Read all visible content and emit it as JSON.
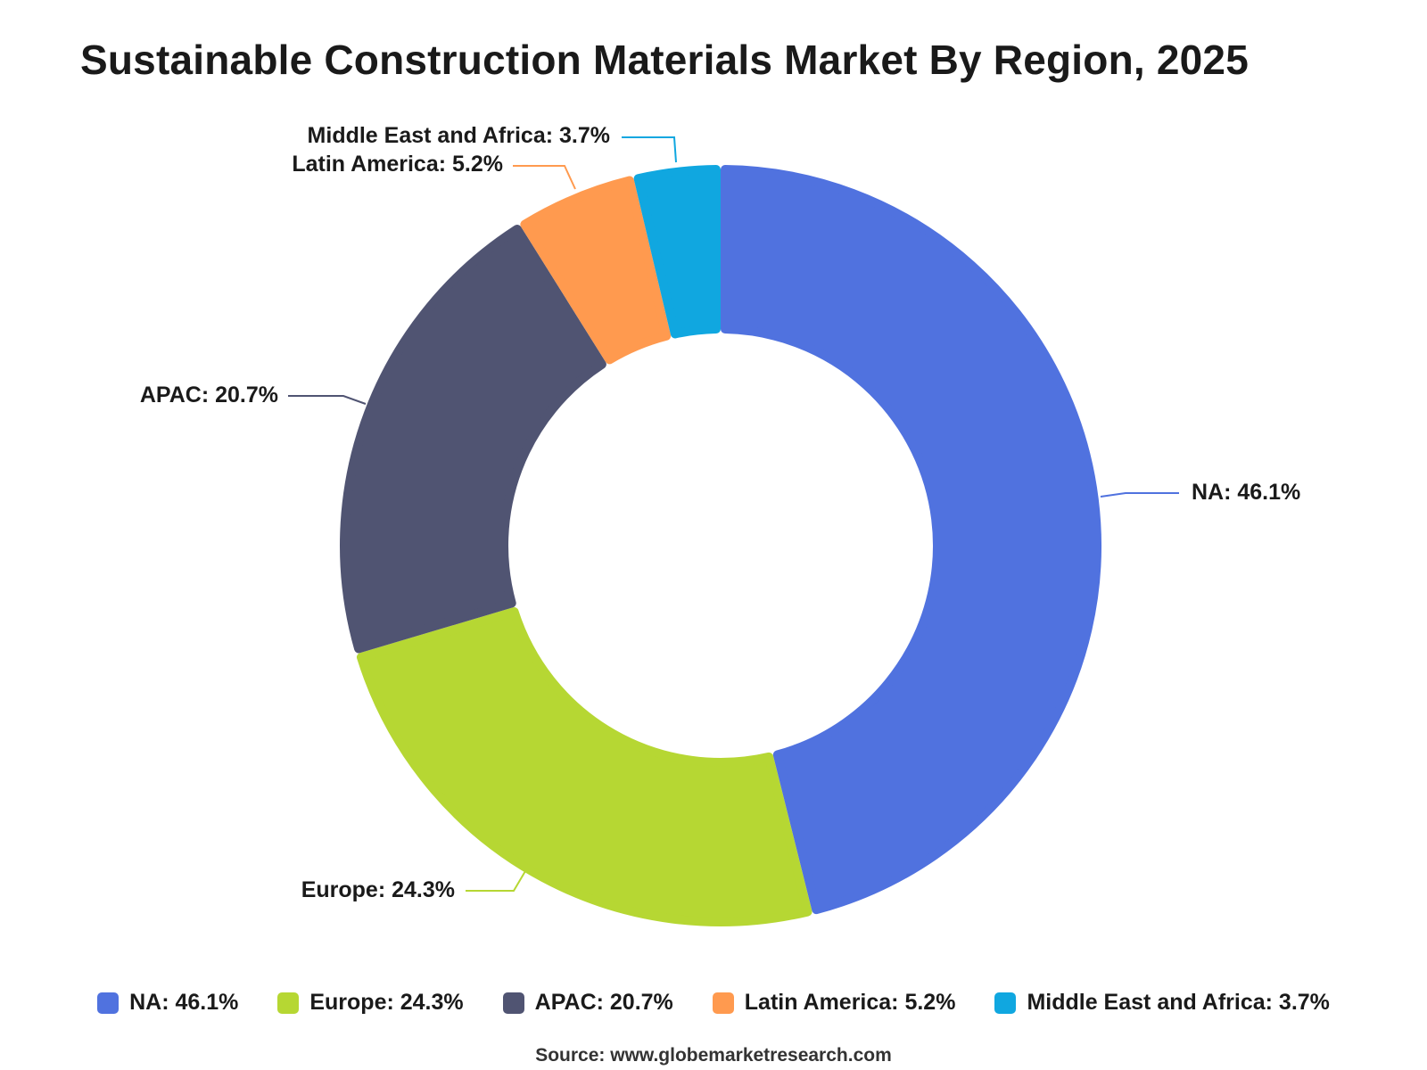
{
  "chart_data": {
    "type": "pie",
    "donut": true,
    "title": "Sustainable Construction Materials Market By Region, 2025",
    "source": "Source: www.globemarketresearch.com",
    "unit": "%",
    "legend_position": "bottom",
    "slices": [
      {
        "label": "NA",
        "value": 46.1,
        "color": "#5072df",
        "text": "NA: 46.1%"
      },
      {
        "label": "Europe",
        "value": 24.3,
        "color": "#b6d733",
        "text": "Europe: 24.3%"
      },
      {
        "label": "APAC",
        "value": 20.7,
        "color": "#505472",
        "text": "APAC: 20.7%"
      },
      {
        "label": "Latin America",
        "value": 5.2,
        "color": "#ff9a4f",
        "text": "Latin America: 5.2%"
      },
      {
        "label": "Middle East and Africa",
        "value": 3.7,
        "color": "#10a7e0",
        "text": "Middle East and Africa: 3.7%"
      }
    ]
  }
}
